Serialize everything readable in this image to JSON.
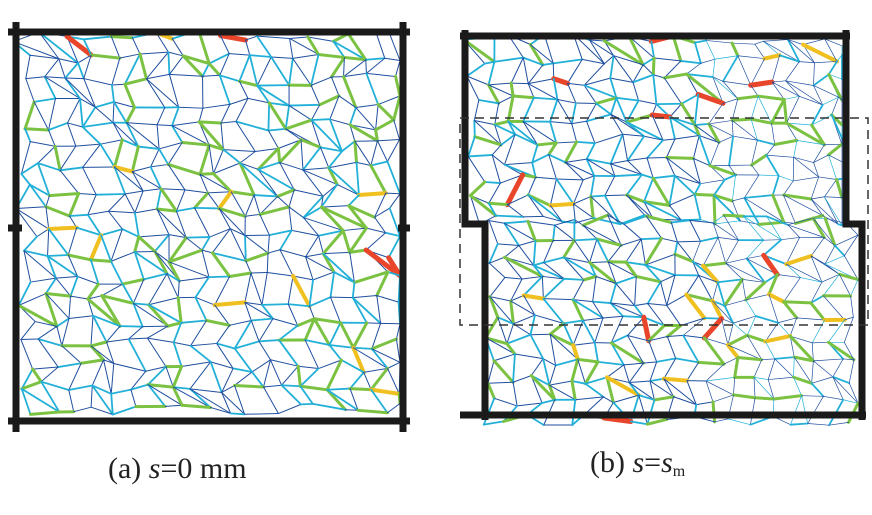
{
  "colors": {
    "frame": "#1a1a1a",
    "weak": "#1f4fa0",
    "mid": "#22b0d8",
    "strong": "#7cc242",
    "stronger": "#f0c020",
    "peak": "#e8452a"
  },
  "panels": [
    {
      "label": "(a)",
      "var": "s",
      "eq": "=0 mm",
      "sub": ""
    },
    {
      "label": "(b)",
      "var": "s",
      "eq": "=",
      "var2": "s",
      "sub": "m"
    }
  ]
}
